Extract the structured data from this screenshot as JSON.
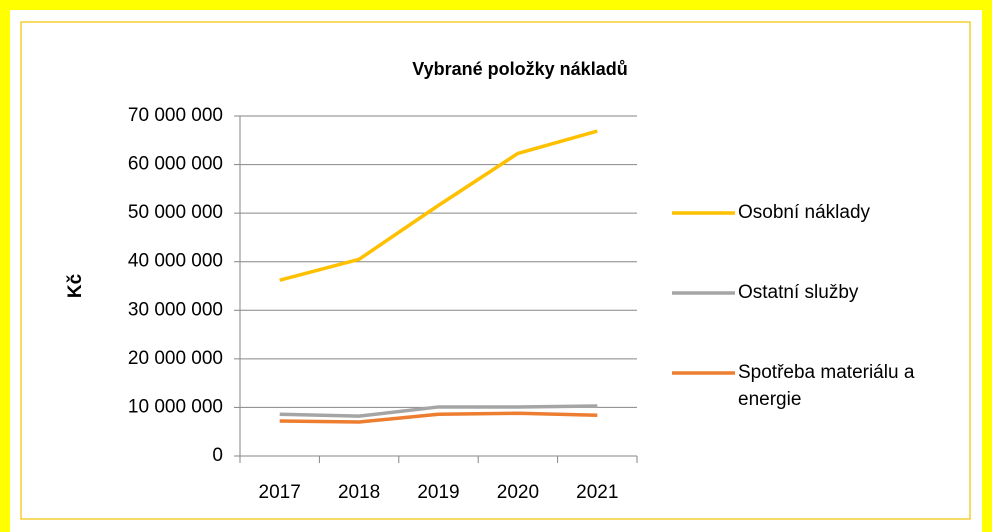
{
  "chart_data": {
    "type": "line",
    "title": "Vybrané položky nákladů",
    "y_label": "Kč",
    "categories": [
      "2017",
      "2018",
      "2019",
      "2020",
      "2021"
    ],
    "series": [
      {
        "name": "Osobní náklady",
        "color": "#ffc000",
        "values": [
          36200000,
          40500000,
          51600000,
          62300000,
          66900000
        ]
      },
      {
        "name": "Ostatní služby",
        "color": "#a5a5a5",
        "values": [
          8600000,
          8200000,
          10100000,
          10100000,
          10300000
        ]
      },
      {
        "name": "Spotřeba materiálu a energie",
        "color": "#ed7d31",
        "values": [
          7200000,
          7000000,
          8600000,
          8800000,
          8400000
        ]
      }
    ],
    "ylim": [
      0,
      70000000
    ],
    "yticks": [
      0,
      {
        "value": 10000000,
        "label": "10 000 000"
      },
      {
        "value": 20000000,
        "label": "20 000 000"
      },
      {
        "value": 30000000,
        "label": "30 000 000"
      },
      {
        "value": 40000000,
        "label": "40 000 000"
      },
      {
        "value": 50000000,
        "label": "50 000 000"
      },
      {
        "value": 60000000,
        "label": "60 000 000"
      },
      {
        "value": 70000000,
        "label": "70 000 000"
      }
    ],
    "grid": true,
    "legend": "right"
  }
}
